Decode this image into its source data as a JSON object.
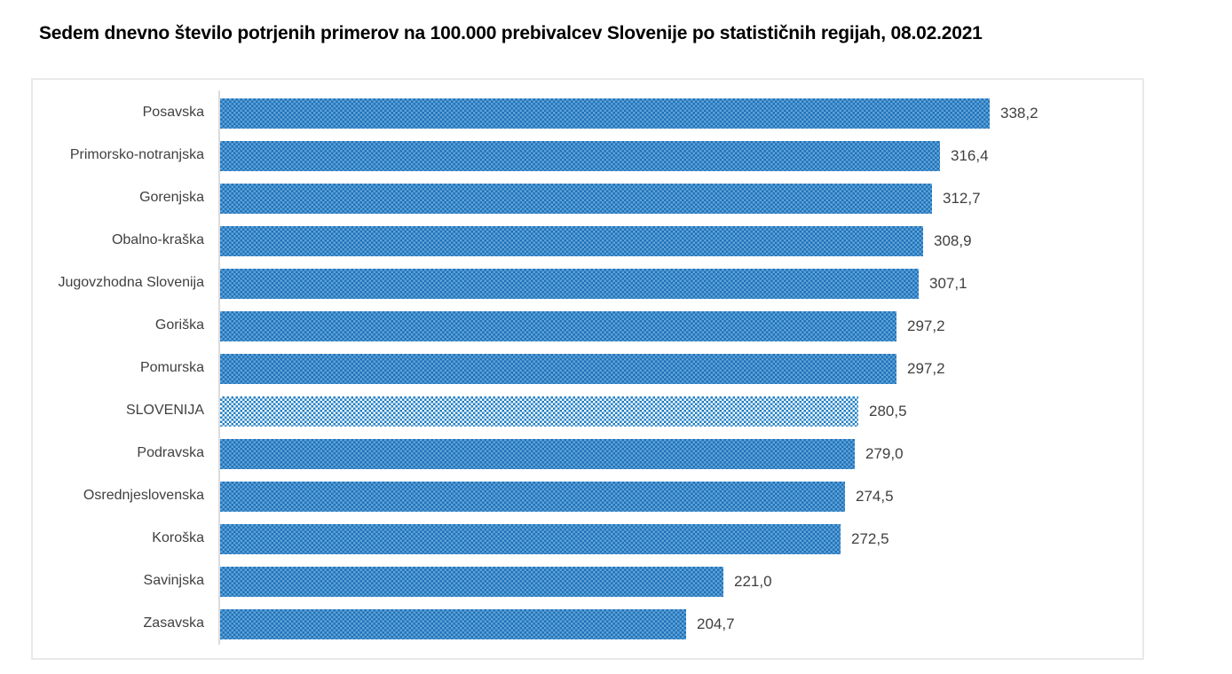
{
  "title": "Sedem dnevno število potrjenih primerov na 100.000 prebivalcev Slovenije po statističnih regijah, 08.02.2021",
  "chart_data": {
    "type": "bar",
    "orientation": "horizontal",
    "title": "Sedem dnevno število potrjenih primerov na 100.000 prebivalcev Slovenije po statističnih regijah, 08.02.2021",
    "categories": [
      "Posavska",
      "Primorsko-notranjska",
      "Gorenjska",
      "Obalno-kraška",
      "Jugovzhodna Slovenija",
      "Goriška",
      "Pomurska",
      "SLOVENIJA",
      "Podravska",
      "Osrednjeslovenska",
      "Koroška",
      "Savinjska",
      "Zasavska"
    ],
    "values": [
      338.2,
      316.4,
      312.7,
      308.9,
      307.1,
      297.2,
      297.2,
      280.5,
      279.0,
      274.5,
      272.5,
      221.0,
      204.7
    ],
    "value_labels": [
      "338,2",
      "316,4",
      "312,7",
      "308,9",
      "307,1",
      "297,2",
      "297,2",
      "280,5",
      "279,0",
      "274,5",
      "272,5",
      "221,0",
      "204,7"
    ],
    "highlight_category": "SLOVENIJA",
    "xlabel": "",
    "ylabel": "",
    "xlim": [
      0,
      406
    ],
    "grid": false,
    "legend": false,
    "colors": {
      "bar_pattern_dark": "#1f72b8",
      "bar_pattern_light": "#60a3d9",
      "highlight_pattern_dark": "#1e7ec4",
      "highlight_pattern_light": "#ffffff",
      "axis_line": "#dcdcdc",
      "frame_border": "#e9e9e9",
      "label_text": "#404040",
      "title_text": "#000000"
    }
  }
}
